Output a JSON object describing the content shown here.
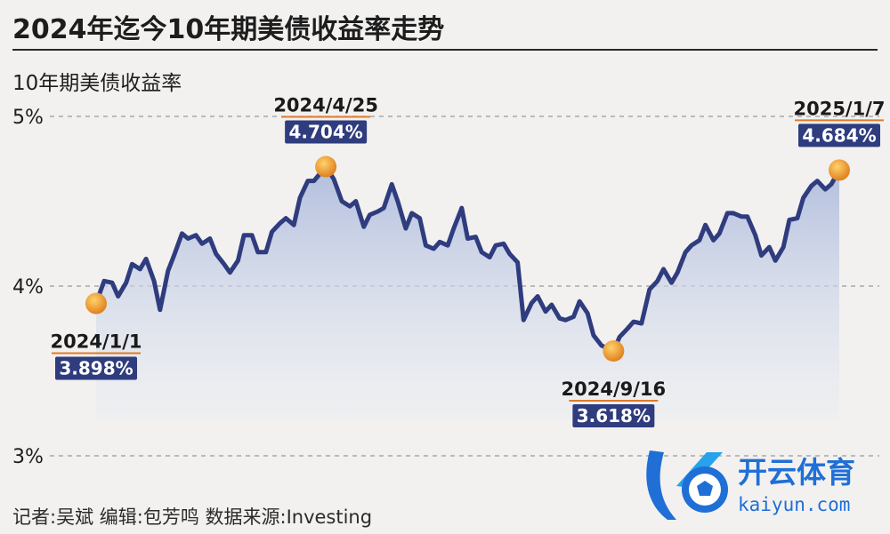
{
  "title": "2024年迄今10年期美债收益率走势",
  "footer": "记者:吴斌  编辑:包芳鸣  数据来源:Investing",
  "logo": {
    "cn": "开云体育",
    "en": "kaiyun.com"
  },
  "colors": {
    "line": "#2f3c7e",
    "marker": "#f0a63a",
    "label_bg": "#2f3c7e",
    "label_text": "#ffffff",
    "underline": "#e07a2a",
    "grid": "#9a9a9a",
    "area_top": "#aebbdc",
    "logo_blue": "#1f6fd6"
  },
  "chart_data": {
    "type": "line",
    "title": "2024年迄今10年期美债收益率走势",
    "ylabel": "10年期美债收益率",
    "ylim": [
      3,
      5
    ],
    "yticks": [
      {
        "value": 5,
        "label": "5%"
      },
      {
        "value": 4,
        "label": "4%"
      },
      {
        "value": 3,
        "label": "3%"
      }
    ],
    "grid": "horizontal dashed",
    "xlim": [
      "2024-01-01",
      "2025-01-07"
    ],
    "series": [
      {
        "values": [
          [
            "2024-01-01",
            3.9
          ],
          [
            "2024-01-05",
            4.03
          ],
          [
            "2024-01-09",
            4.02
          ],
          [
            "2024-01-12",
            3.94
          ],
          [
            "2024-01-16",
            4.02
          ],
          [
            "2024-01-19",
            4.13
          ],
          [
            "2024-01-23",
            4.1
          ],
          [
            "2024-01-26",
            4.16
          ],
          [
            "2024-01-30",
            4.03
          ],
          [
            "2024-02-02",
            3.86
          ],
          [
            "2024-02-06",
            4.09
          ],
          [
            "2024-02-09",
            4.18
          ],
          [
            "2024-02-13",
            4.31
          ],
          [
            "2024-02-16",
            4.28
          ],
          [
            "2024-02-20",
            4.3
          ],
          [
            "2024-02-23",
            4.25
          ],
          [
            "2024-02-27",
            4.28
          ],
          [
            "2024-03-01",
            4.19
          ],
          [
            "2024-03-05",
            4.13
          ],
          [
            "2024-03-08",
            4.08
          ],
          [
            "2024-03-12",
            4.15
          ],
          [
            "2024-03-15",
            4.3
          ],
          [
            "2024-03-19",
            4.3
          ],
          [
            "2024-03-22",
            4.2
          ],
          [
            "2024-03-26",
            4.2
          ],
          [
            "2024-03-29",
            4.32
          ],
          [
            "2024-04-02",
            4.37
          ],
          [
            "2024-04-05",
            4.4
          ],
          [
            "2024-04-09",
            4.36
          ],
          [
            "2024-04-12",
            4.52
          ],
          [
            "2024-04-16",
            4.62
          ],
          [
            "2024-04-19",
            4.62
          ],
          [
            "2024-04-25",
            4.704
          ],
          [
            "2024-04-29",
            4.63
          ],
          [
            "2024-05-03",
            4.5
          ],
          [
            "2024-05-07",
            4.47
          ],
          [
            "2024-05-10",
            4.5
          ],
          [
            "2024-05-14",
            4.35
          ],
          [
            "2024-05-17",
            4.42
          ],
          [
            "2024-05-21",
            4.44
          ],
          [
            "2024-05-24",
            4.46
          ],
          [
            "2024-05-28",
            4.6
          ],
          [
            "2024-05-31",
            4.5
          ],
          [
            "2024-06-04",
            4.34
          ],
          [
            "2024-06-07",
            4.43
          ],
          [
            "2024-06-11",
            4.4
          ],
          [
            "2024-06-14",
            4.24
          ],
          [
            "2024-06-18",
            4.22
          ],
          [
            "2024-06-21",
            4.26
          ],
          [
            "2024-06-25",
            4.24
          ],
          [
            "2024-06-28",
            4.34
          ],
          [
            "2024-07-02",
            4.46
          ],
          [
            "2024-07-05",
            4.28
          ],
          [
            "2024-07-09",
            4.29
          ],
          [
            "2024-07-12",
            4.2
          ],
          [
            "2024-07-16",
            4.17
          ],
          [
            "2024-07-19",
            4.24
          ],
          [
            "2024-07-23",
            4.25
          ],
          [
            "2024-07-26",
            4.19
          ],
          [
            "2024-07-30",
            4.14
          ],
          [
            "2024-08-02",
            3.8
          ],
          [
            "2024-08-06",
            3.9
          ],
          [
            "2024-08-09",
            3.94
          ],
          [
            "2024-08-13",
            3.85
          ],
          [
            "2024-08-16",
            3.89
          ],
          [
            "2024-08-20",
            3.81
          ],
          [
            "2024-08-23",
            3.8
          ],
          [
            "2024-08-27",
            3.82
          ],
          [
            "2024-08-30",
            3.91
          ],
          [
            "2024-09-03",
            3.84
          ],
          [
            "2024-09-06",
            3.71
          ],
          [
            "2024-09-10",
            3.65
          ],
          [
            "2024-09-16",
            3.618
          ],
          [
            "2024-09-19",
            3.7
          ],
          [
            "2024-09-23",
            3.75
          ],
          [
            "2024-09-26",
            3.79
          ],
          [
            "2024-09-30",
            3.78
          ],
          [
            "2024-10-04",
            3.98
          ],
          [
            "2024-10-08",
            4.03
          ],
          [
            "2024-10-11",
            4.1
          ],
          [
            "2024-10-15",
            4.02
          ],
          [
            "2024-10-18",
            4.08
          ],
          [
            "2024-10-22",
            4.2
          ],
          [
            "2024-10-25",
            4.24
          ],
          [
            "2024-10-29",
            4.27
          ],
          [
            "2024-11-01",
            4.36
          ],
          [
            "2024-11-05",
            4.27
          ],
          [
            "2024-11-08",
            4.31
          ],
          [
            "2024-11-12",
            4.43
          ],
          [
            "2024-11-15",
            4.43
          ],
          [
            "2024-11-19",
            4.41
          ],
          [
            "2024-11-22",
            4.41
          ],
          [
            "2024-11-26",
            4.3
          ],
          [
            "2024-11-29",
            4.18
          ],
          [
            "2024-12-03",
            4.23
          ],
          [
            "2024-12-06",
            4.15
          ],
          [
            "2024-12-10",
            4.23
          ],
          [
            "2024-12-13",
            4.39
          ],
          [
            "2024-12-17",
            4.4
          ],
          [
            "2024-12-20",
            4.52
          ],
          [
            "2024-12-24",
            4.59
          ],
          [
            "2024-12-27",
            4.62
          ],
          [
            "2024-12-31",
            4.57
          ],
          [
            "2025-01-03",
            4.6
          ],
          [
            "2025-01-07",
            4.684
          ]
        ]
      }
    ],
    "annotations": [
      {
        "date": "2024/1/1",
        "x": "2024-01-01",
        "value": 3.898,
        "label": "3.898%",
        "position": "below"
      },
      {
        "date": "2024/4/25",
        "x": "2024-04-25",
        "value": 4.704,
        "label": "4.704%",
        "position": "above"
      },
      {
        "date": "2024/9/16",
        "x": "2024-09-16",
        "value": 3.618,
        "label": "3.618%",
        "position": "below"
      },
      {
        "date": "2025/1/7",
        "x": "2025-01-07",
        "value": 4.684,
        "label": "4.684%",
        "position": "above"
      }
    ]
  }
}
